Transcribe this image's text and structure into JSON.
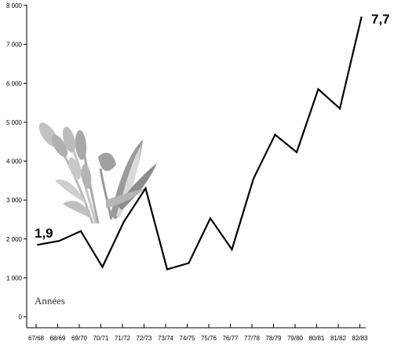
{
  "chart_data": {
    "type": "line",
    "categories": [
      "67/68",
      "68/69",
      "69/70",
      "70/71",
      "71/72",
      "72/73",
      "73/74",
      "74/75",
      "75/76",
      "76/77",
      "77/78",
      "78/79",
      "79/80",
      "80/81",
      "81/82",
      "82/83"
    ],
    "values": [
      1850,
      1950,
      2200,
      1280,
      2450,
      3300,
      1220,
      1380,
      2530,
      1730,
      3550,
      4680,
      4230,
      5850,
      5350,
      7700
    ],
    "y_ticks": [
      "0",
      "1 000",
      "2 000",
      "3 000",
      "4 000",
      "5 000",
      "6 000",
      "7 000",
      "8 000"
    ],
    "ylim": [
      0,
      8000
    ],
    "xlabel": "Années",
    "ylabel": "",
    "title": "",
    "start_label": "1,9",
    "end_label": "7,7",
    "grid": false,
    "line_color": "#000000",
    "decoration": "grain-illustration"
  }
}
